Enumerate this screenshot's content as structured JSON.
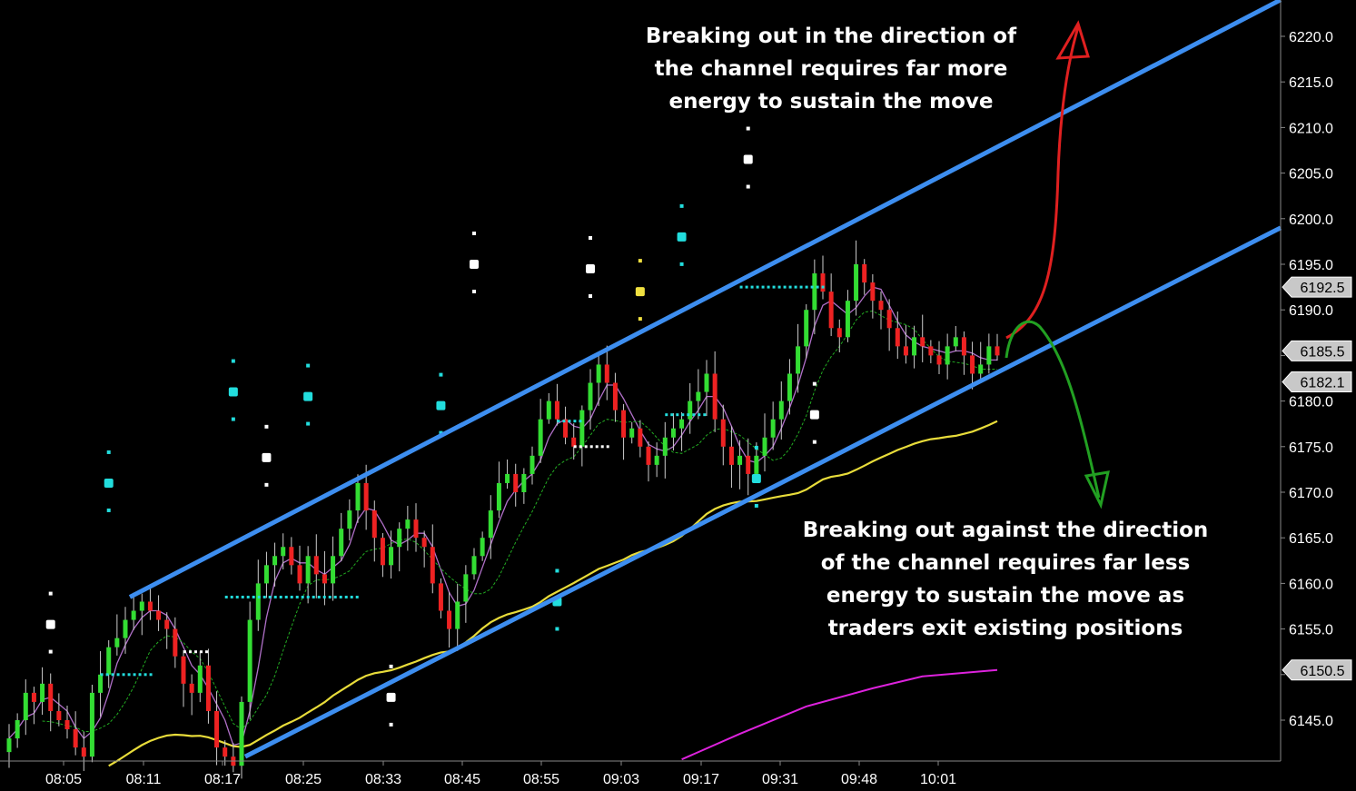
{
  "chart_data": {
    "type": "candlestick",
    "x_tick_labels": [
      "08:05",
      "08:11",
      "08:17",
      "08:25",
      "08:33",
      "08:45",
      "08:55",
      "09:03",
      "09:17",
      "09:31",
      "09:48",
      "10:01"
    ],
    "y_ticks": [
      6145.0,
      6150.0,
      6155.0,
      6160.0,
      6165.0,
      6170.0,
      6175.0,
      6180.0,
      6185.0,
      6190.0,
      6195.0,
      6200.0,
      6205.0,
      6210.0,
      6215.0,
      6220.0
    ],
    "y_tick_labels": [
      "6145.0",
      "6150.0",
      "6155.0",
      "6160.0",
      "6165.0",
      "6170.0",
      "6175.0",
      "6180.0",
      "6185.0",
      "6190.0",
      "6195.0",
      "6200.0",
      "6205.0",
      "6210.0",
      "6215.0",
      "6220.0"
    ],
    "ylim": [
      6141.0,
      6224.0
    ],
    "price_badges": [
      {
        "value": 6192.5,
        "label": "6192.5"
      },
      {
        "value": 6185.5,
        "label": "6185.5"
      },
      {
        "value": 6182.1,
        "label": "6182.1"
      },
      {
        "value": 6150.5,
        "label": "6150.5"
      }
    ],
    "closes": [
      6143,
      6145,
      6148,
      6147,
      6149,
      6146,
      6145,
      6144,
      6142,
      6141,
      6148,
      6150,
      6153,
      6154,
      6156,
      6157,
      6158,
      6157,
      6156,
      6155,
      6152,
      6149,
      6148,
      6151,
      6146,
      6142,
      6141,
      6140,
      6147,
      6156,
      6160,
      6162,
      6163,
      6164,
      6162,
      6160,
      6163,
      6161,
      6160,
      6163,
      6166,
      6168,
      6171,
      6168,
      6165,
      6162,
      6164,
      6166,
      6167,
      6165,
      6164,
      6160,
      6157,
      6155,
      6158,
      6161,
      6163,
      6165,
      6168,
      6171,
      6172,
      6170,
      6172,
      6174,
      6178,
      6180,
      6178,
      6176,
      6175,
      6179,
      6182,
      6184,
      6182,
      6179,
      6176,
      6177,
      6175,
      6173,
      6174,
      6176,
      6177,
      6178,
      6180,
      6181,
      6183,
      6178,
      6175,
      6173,
      6174,
      6172,
      6174,
      6176,
      6178,
      6180,
      6183,
      6186,
      6190,
      6194,
      6192,
      6188,
      6187,
      6191,
      6195,
      6193,
      6191,
      6190,
      6188,
      6186,
      6185,
      6187,
      6186,
      6185,
      6184,
      6186,
      6187,
      6185,
      6183,
      6184,
      6186,
      6185
    ],
    "channel": {
      "upper_start": 6158.5,
      "upper_end": 6224.0,
      "lower_start": 6141.0,
      "lower_end": 6199.0
    },
    "annotations": [
      {
        "id": "top",
        "lines": [
          "Breaking out in the direction of",
          "the channel requires far more",
          "energy to sustain the move"
        ]
      },
      {
        "id": "bottom",
        "lines": [
          "Breaking out against the direction",
          "of the channel requires far less",
          "energy to sustain the move as",
          "traders exit existing positions"
        ]
      }
    ],
    "colors": {
      "up": "#33dd33",
      "down": "#ee2222",
      "wick": "#cccccc",
      "channel": "#3d8ef0",
      "ma_slow": "#e8dc3a",
      "ma_fast": "#b070c8",
      "ma_trail": "#22aa22",
      "magenta": "#dd22dd",
      "cyan": "#22dddd",
      "yellow_marker": "#f0e040",
      "arrow_up": "#e02020",
      "arrow_down": "#22a022",
      "axis": "#888888",
      "tick_text": "#ffffff",
      "badge_fill": "#c8c8c8",
      "badge_text": "#000000"
    }
  }
}
